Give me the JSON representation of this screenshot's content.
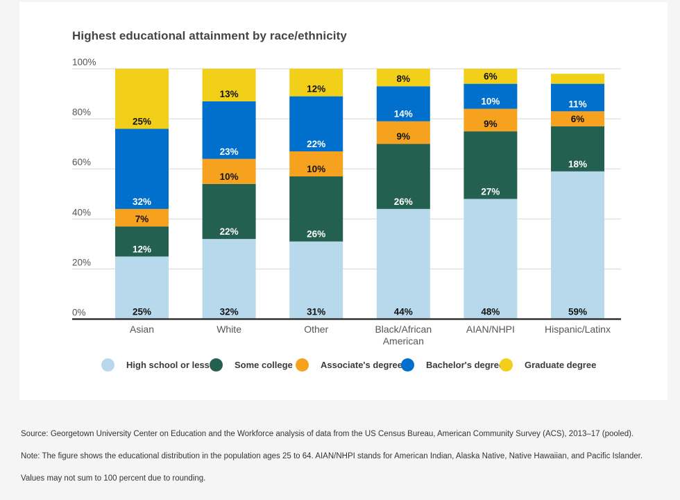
{
  "chart_data": {
    "type": "bar",
    "stacked": true,
    "title": "Highest educational attainment by race/ethnicity",
    "xlabel": "",
    "ylabel": "",
    "ylim": [
      0,
      100
    ],
    "yticks": [
      "0%",
      "20%",
      "40%",
      "60%",
      "80%",
      "100%"
    ],
    "ytick_values": [
      0,
      20,
      40,
      60,
      80,
      100
    ],
    "grid": true,
    "legend_position": "bottom",
    "categories": [
      "Asian",
      "White",
      "Other",
      "Black/African American",
      "AIAN/NHPI",
      "Hispanic/Latinx"
    ],
    "category_lines": [
      [
        "Asian"
      ],
      [
        "White"
      ],
      [
        "Other"
      ],
      [
        "Black/African",
        "American"
      ],
      [
        "AIAN/NHPI"
      ],
      [
        "Hispanic/Latinx"
      ]
    ],
    "series": [
      {
        "name": "High school or less",
        "color": "#b8d9ec",
        "label_color": "#111111",
        "values": [
          25,
          32,
          31,
          44,
          48,
          59
        ],
        "labels": [
          "25%",
          "32%",
          "31%",
          "44%",
          "48%",
          "59%"
        ]
      },
      {
        "name": "Some college",
        "color": "#236050",
        "label_color": "#ffffff",
        "values": [
          12,
          22,
          26,
          26,
          27,
          18
        ],
        "labels": [
          "12%",
          "22%",
          "26%",
          "26%",
          "27%",
          "18%"
        ]
      },
      {
        "name": "Associate's degree",
        "color": "#f6a21e",
        "label_color": "#111111",
        "values": [
          7,
          10,
          10,
          9,
          9,
          6
        ],
        "labels": [
          "7%",
          "10%",
          "10%",
          "9%",
          "9%",
          "6%"
        ]
      },
      {
        "name": "Bachelor's degree",
        "color": "#0070cc",
        "label_color": "#ffffff",
        "values": [
          32,
          23,
          22,
          14,
          10,
          11
        ],
        "labels": [
          "32%",
          "23%",
          "22%",
          "14%",
          "10%",
          "11%"
        ]
      },
      {
        "name": "Graduate degree",
        "color": "#f2d019",
        "label_color": "#111111",
        "values": [
          25,
          13,
          12,
          8,
          6,
          4
        ],
        "labels": [
          "25%",
          "13%",
          "12%",
          "8%",
          "6%",
          ""
        ]
      }
    ]
  },
  "notes": {
    "source": "Source: Georgetown University Center on Education and the Workforce analysis of data from the US Census Bureau, American Community Survey (ACS), 2013–17 (pooled).",
    "note": "Note: The figure shows the educational distribution in the population ages 25 to 64. AIAN/NHPI stands for American Indian, Alaska Native, Native Hawaiian, and Pacific Islander.",
    "rounding": "Values may not sum to 100 percent due to rounding."
  }
}
